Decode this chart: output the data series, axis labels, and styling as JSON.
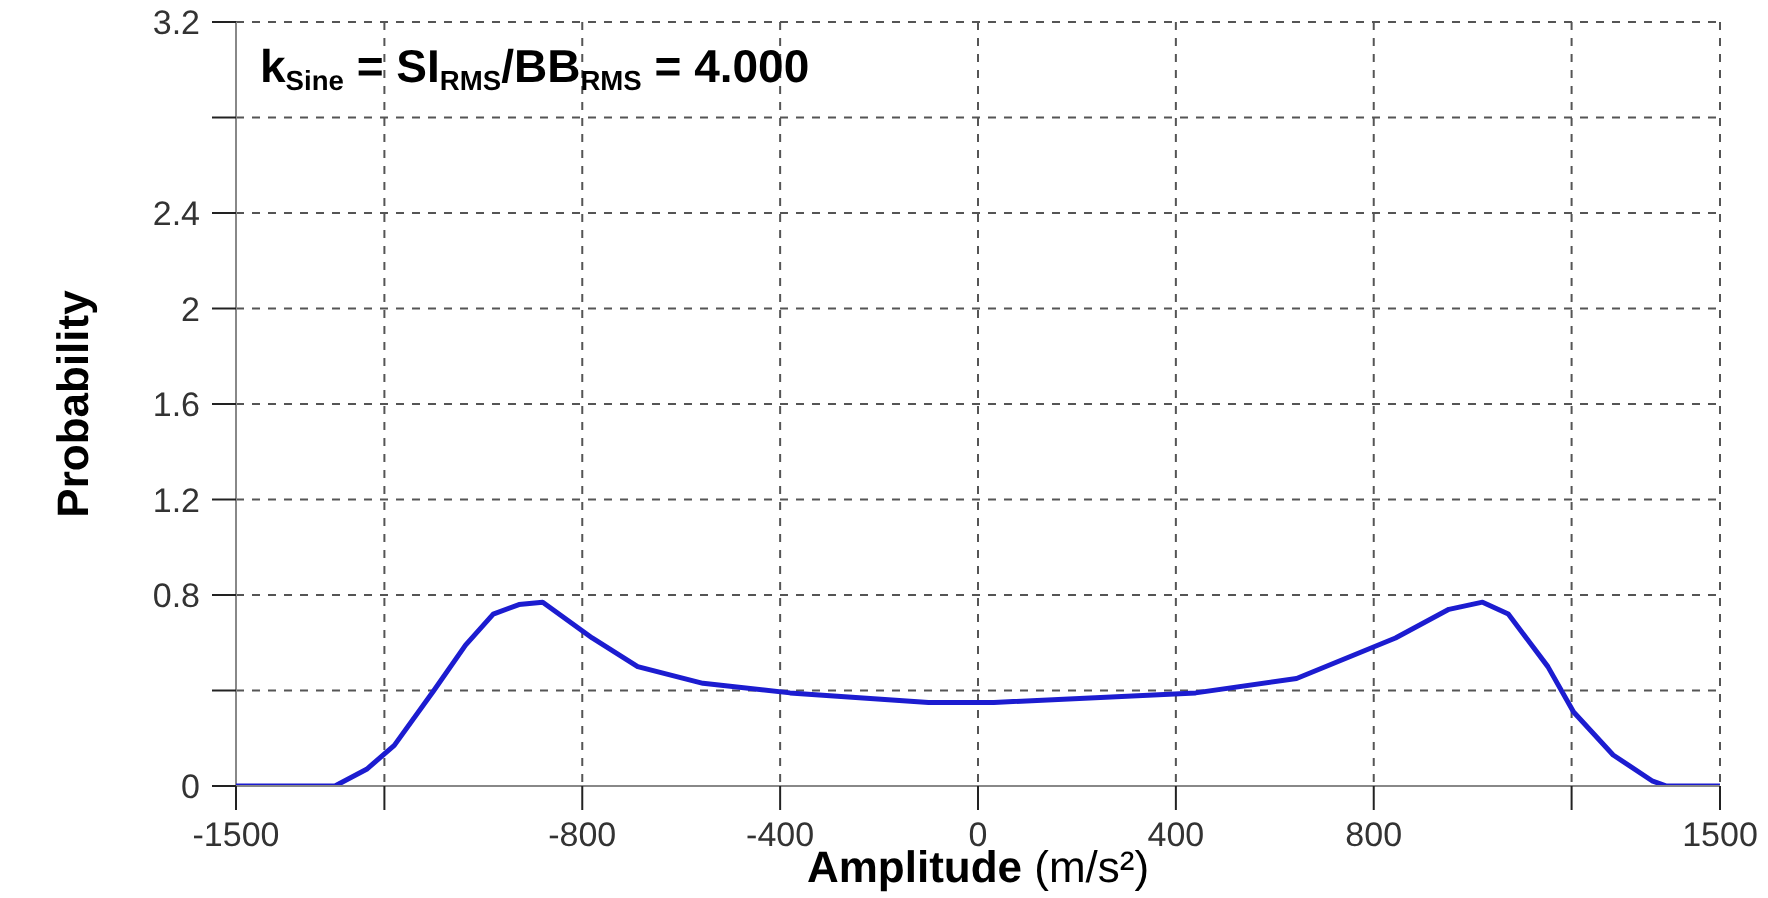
{
  "chart_data": {
    "type": "line",
    "xlabel": "Amplitude (m/s²)",
    "ylabel": "Probability",
    "annotations": [
      "k$_{Sine}$ = SI$_{RMS}$/BB$_{RMS}$ = 4.000"
    ],
    "x": [
      -1500,
      -1300,
      -1236,
      -1180,
      -1100,
      -1036,
      -980,
      -928,
      -880,
      -780,
      -688,
      -556,
      -380,
      -100,
      32,
      440,
      644,
      844,
      952,
      1020,
      1072,
      1152,
      1204,
      1284,
      1364,
      1392,
      1500
    ],
    "series": [
      {
        "color": "#1c1cd0",
        "values": [
          0,
          0,
          0.07,
          0.17,
          0.4,
          0.59,
          0.72,
          0.76,
          0.77,
          0.62,
          0.5,
          0.43,
          0.39,
          0.35,
          0.35,
          0.39,
          0.45,
          0.62,
          0.74,
          0.77,
          0.72,
          0.5,
          0.31,
          0.13,
          0.02,
          0,
          0
        ]
      }
    ],
    "xlim": [
      -1500,
      1500
    ],
    "xticks": [
      -1500,
      {
        "value": -1200,
        "label": null
      },
      -800,
      -400,
      0,
      400,
      800,
      {
        "value": 1200,
        "label": null
      },
      1500
    ],
    "ylim": [
      0,
      3.2
    ],
    "yticks": [
      0,
      {
        "value": 0.4,
        "label": null
      },
      0.8,
      1.2,
      1.6,
      2,
      2.4,
      {
        "value": 2.8,
        "label": null
      },
      3.2
    ],
    "grid": true,
    "legend": false,
    "marker": "none",
    "line_style": "solid"
  }
}
